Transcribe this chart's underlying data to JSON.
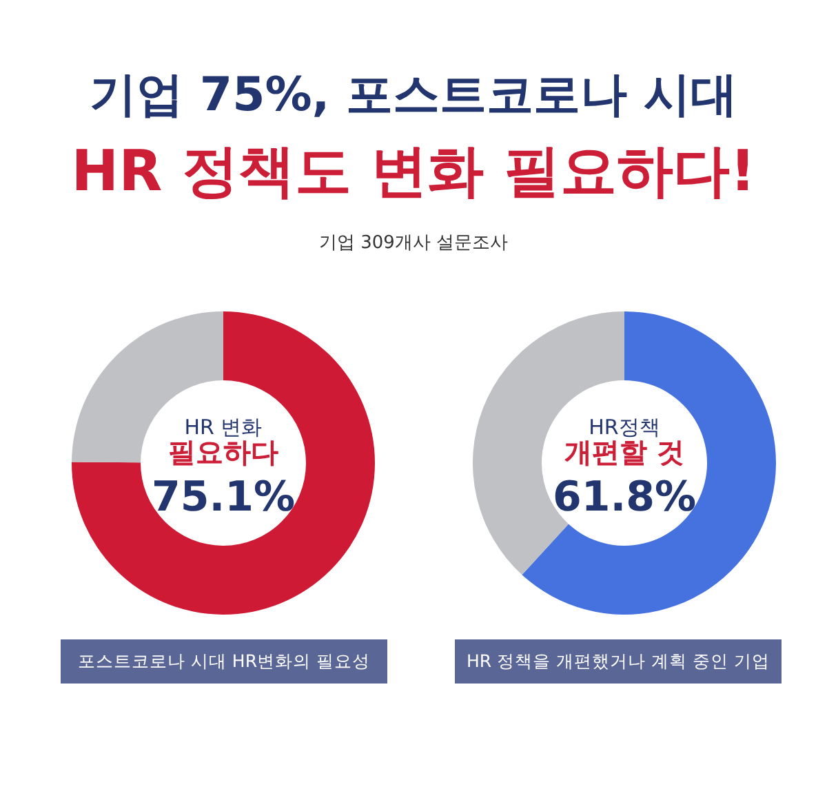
{
  "chart_data": [
    {
      "type": "other",
      "title": "기업 75%, 포스트코로나 시대",
      "subtitle": "HR 정책도 변화 필요하다!",
      "annotations": [
        "기업 309개사 설문조사"
      ]
    },
    {
      "type": "donut",
      "title": "포스트코로나 시대 HR변화의 필요성",
      "categories": [
        null,
        null
      ],
      "values": [
        75.1,
        24.9
      ],
      "colors": [
        "#cf1a35",
        "#c0c1c5"
      ],
      "value_labels": [
        "75.1%",
        null
      ],
      "annotations": [
        "HR 변화",
        "필요하다"
      ]
    },
    {
      "type": "donut",
      "title": "HR 정책을 개편했거나 계획 중인 기업",
      "categories": [
        null,
        null
      ],
      "values": [
        61.8,
        38.2
      ],
      "colors": [
        "#4672e0",
        "#c0c1c5"
      ],
      "value_labels": [
        "61.8%",
        null
      ],
      "annotations": [
        "HR정책",
        "개편할 것"
      ]
    }
  ]
}
